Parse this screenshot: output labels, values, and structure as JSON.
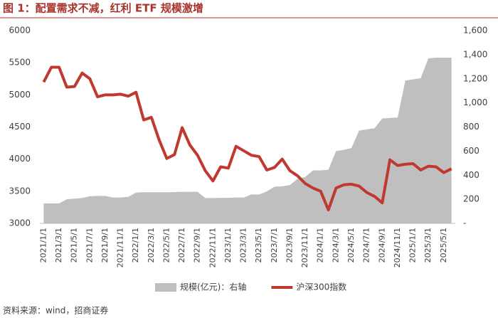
{
  "chart_data": {
    "type": "combo",
    "title": "图 1：配置需求不减，红利 ETF 规模激增",
    "source": "资料来源：wind，招商证券",
    "categories": [
      "2021/1/1",
      null,
      "2021/3/1",
      null,
      "2021/5/1",
      null,
      "2021/7/1",
      null,
      "2021/9/1",
      null,
      "2021/11/1",
      null,
      "2022/1/1",
      null,
      "2022/3/1",
      null,
      "2022/5/1",
      null,
      "2022/7/1",
      null,
      "2022/9/1",
      null,
      "2022/11/1",
      null,
      "2023/1/1",
      null,
      "2023/3/1",
      null,
      "2023/5/1",
      null,
      "2023/7/1",
      null,
      "2023/9/1",
      null,
      "2023/11/1",
      null,
      "2024/1/1",
      null,
      "2024/3/1",
      null,
      "2024/5/1",
      null,
      "2024/7/1",
      null,
      "2024/9/1",
      null,
      "2024/11/1",
      null,
      "2025/1/1",
      null,
      "2025/3/1",
      null,
      "2025/5/1",
      null
    ],
    "ylim": [
      3000,
      6000
    ],
    "yticks": [
      3000,
      3500,
      4000,
      4500,
      5000,
      5500,
      6000
    ],
    "y2lim": [
      0,
      1600
    ],
    "y2ticks": [
      {
        "value": 0,
        "label": "-"
      },
      200,
      400,
      600,
      800,
      {
        "value": 1000,
        "label": "1,000"
      },
      {
        "value": 1200,
        "label": "1,200"
      },
      {
        "value": 1400,
        "label": "1,400"
      },
      {
        "value": 1600,
        "label": "1,600"
      }
    ],
    "grid": false,
    "legend": "bottom",
    "series": [
      {
        "name": "规模(亿元)：右轴",
        "type": "area",
        "axis": "y2",
        "color": "#bfbfbf",
        "values": [
          165,
          165,
          165,
          200,
          205,
          210,
          225,
          228,
          228,
          215,
          215,
          220,
          255,
          258,
          258,
          258,
          258,
          260,
          262,
          262,
          262,
          210,
          210,
          212,
          212,
          215,
          215,
          240,
          240,
          265,
          305,
          308,
          318,
          370,
          385,
          440,
          440,
          445,
          600,
          610,
          625,
          770,
          780,
          790,
          870,
          875,
          878,
          1185,
          1195,
          1205,
          1370,
          1375,
          1375,
          1375
        ]
      },
      {
        "name": "沪深300指数",
        "type": "line",
        "color": "#c0392f",
        "values": [
          5200,
          5430,
          5430,
          5120,
          5130,
          5340,
          5250,
          4970,
          5000,
          5000,
          5010,
          4980,
          5040,
          4610,
          4650,
          4300,
          4010,
          4070,
          4490,
          4220,
          4060,
          3820,
          3660,
          3880,
          3860,
          4200,
          4130,
          4060,
          4040,
          3830,
          3870,
          4000,
          3820,
          3740,
          3620,
          3550,
          3500,
          3210,
          3550,
          3600,
          3610,
          3580,
          3480,
          3420,
          3320,
          3990,
          3900,
          3920,
          3930,
          3830,
          3890,
          3880,
          3790,
          3850
        ]
      }
    ]
  }
}
